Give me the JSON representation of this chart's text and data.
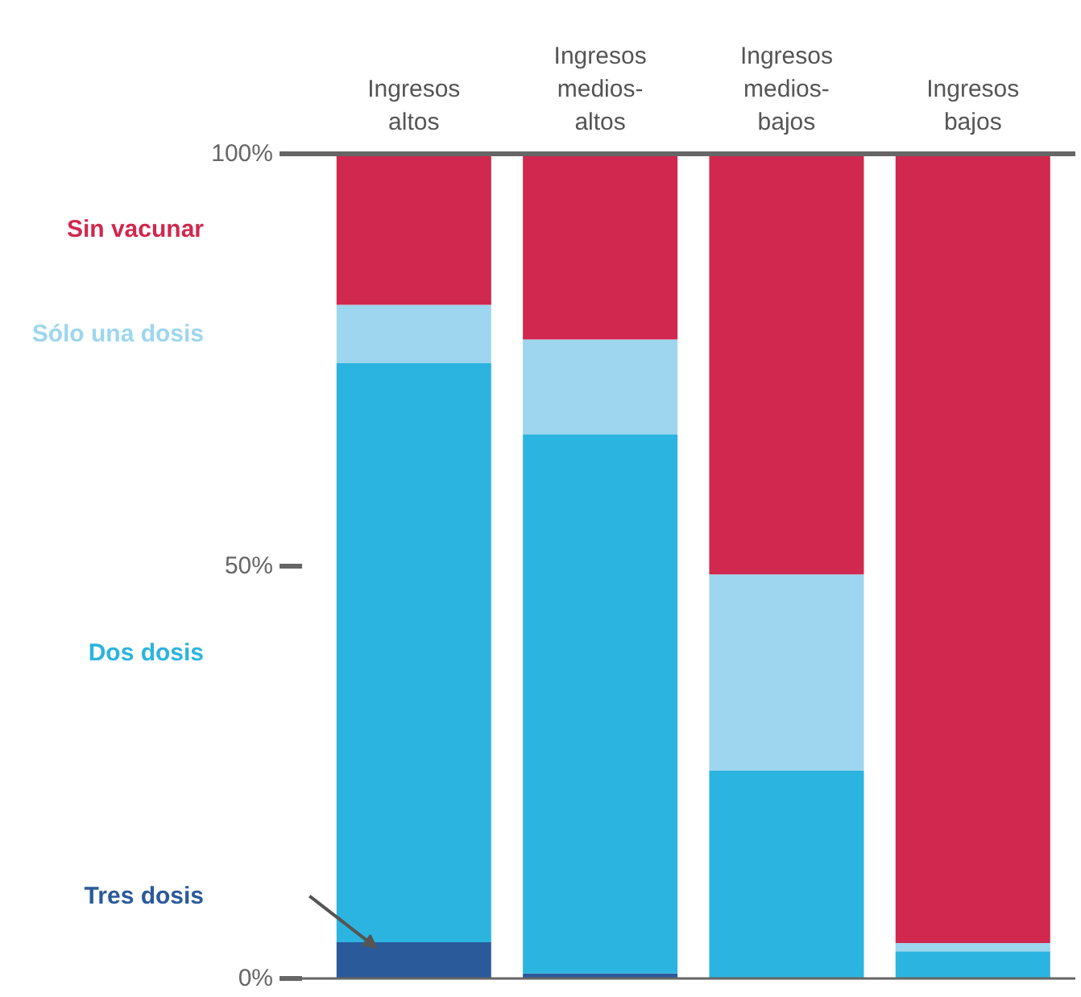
{
  "chart_data": {
    "type": "bar",
    "stacked": true,
    "categories": [
      "Ingresos altos",
      "Ingresos medios-altos",
      "Ingresos medios-bajos",
      "Ingresos bajos"
    ],
    "series": [
      {
        "name": "Tres dosis",
        "color": "#2a5a9a",
        "values": [
          4.4,
          0.6,
          0,
          0
        ]
      },
      {
        "name": "Dos dosis",
        "color": "#2bb4df",
        "values": [
          70.2,
          65.4,
          25.2,
          3.3
        ]
      },
      {
        "name": "Sólo una dosis",
        "color": "#9dd6ee",
        "values": [
          7.1,
          11.5,
          23.8,
          1.0
        ]
      },
      {
        "name": "Sin vacunar",
        "color": "#d0284e",
        "values": [
          18.3,
          22.5,
          51.0,
          95.7
        ]
      }
    ],
    "ylim": [
      0,
      100
    ],
    "yticks": [
      {
        "value": 0,
        "label": "0%"
      },
      {
        "value": 50,
        "label": "50%"
      },
      {
        "value": 100,
        "label": "100%"
      }
    ],
    "grid": false
  }
}
